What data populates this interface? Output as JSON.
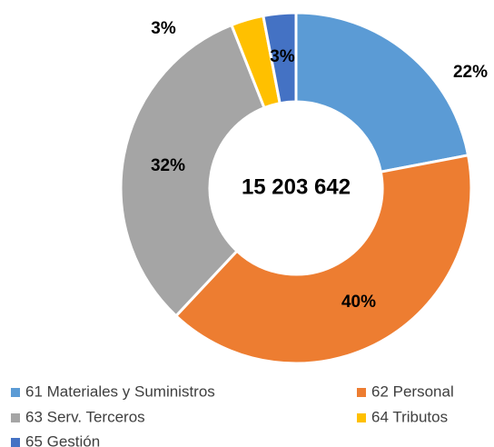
{
  "chart_data": {
    "type": "donut",
    "center_label": "15 203 642",
    "categories": [
      "61 Materiales y Suministros",
      "62 Personal",
      "63 Serv. Terceros",
      "64 Tributos",
      "65 Gestión"
    ],
    "values": [
      22,
      40,
      32,
      3,
      3
    ],
    "value_labels": [
      "22%",
      "40%",
      "32%",
      "3%",
      "3%"
    ],
    "colors": [
      "#5b9bd5",
      "#ed7d31",
      "#a5a5a5",
      "#ffc000",
      "#4472c4"
    ],
    "legend": "bottom"
  }
}
